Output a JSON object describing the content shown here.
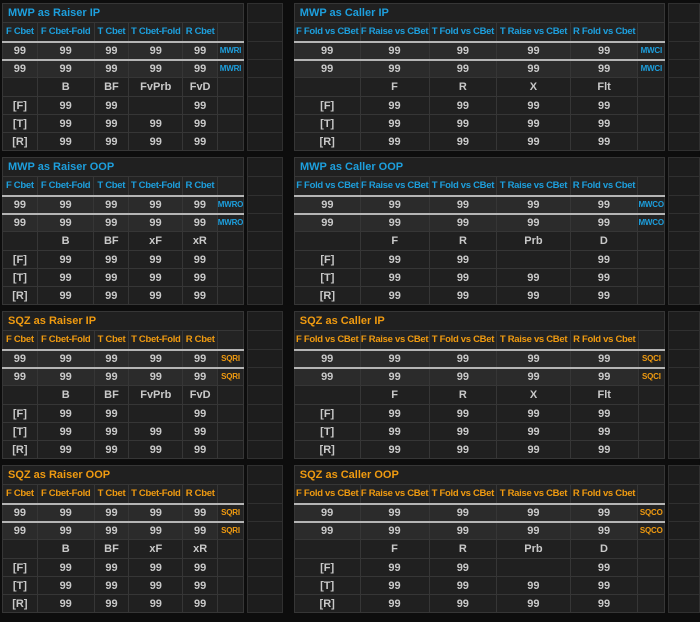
{
  "colors": {
    "mwp_accent": "#1d9fdd",
    "sqz_accent": "#ef9a10",
    "value_text": "#c9c9c9",
    "row_highlight_border": "#b5b5b5"
  },
  "panels": [
    {
      "id": "mwp-raiser-ip",
      "accent": "mwp",
      "title": "MWP as Raiser IP",
      "tag": "MWRI",
      "headers": [
        "F Cbet",
        "F Cbet-Fold",
        "T Cbet",
        "T Cbet-Fold",
        "R Cbet"
      ],
      "stat_rows": [
        [
          "99",
          "99",
          "99",
          "99",
          "99"
        ],
        [
          "99",
          "99",
          "99",
          "99",
          "99"
        ]
      ],
      "action_labels": [
        "B",
        "BF",
        "FvPrb",
        "FvD"
      ],
      "streets": [
        {
          "label": "[F]",
          "values": [
            "99",
            "99",
            "",
            "99"
          ]
        },
        {
          "label": "[T]",
          "values": [
            "99",
            "99",
            "99",
            "99"
          ]
        },
        {
          "label": "[R]",
          "values": [
            "99",
            "99",
            "99",
            "99"
          ]
        }
      ]
    },
    {
      "id": "mwp-caller-ip",
      "accent": "mwp",
      "title": "MWP as Caller IP",
      "tag": "MWCI",
      "headers": [
        "F Fold vs CBet",
        "F Raise vs CBet",
        "T Fold vs CBet",
        "T Raise vs CBet",
        "R Fold vs Cbet"
      ],
      "stat_rows": [
        [
          "99",
          "99",
          "99",
          "99",
          "99"
        ],
        [
          "99",
          "99",
          "99",
          "99",
          "99"
        ]
      ],
      "action_labels": [
        "F",
        "R",
        "X",
        "Flt"
      ],
      "streets": [
        {
          "label": "[F]",
          "values": [
            "99",
            "99",
            "99",
            "99"
          ]
        },
        {
          "label": "[T]",
          "values": [
            "99",
            "99",
            "99",
            "99"
          ]
        },
        {
          "label": "[R]",
          "values": [
            "99",
            "99",
            "99",
            "99"
          ]
        }
      ]
    },
    {
      "id": "mwp-raiser-oop",
      "accent": "mwp",
      "title": "MWP as Raiser OOP",
      "tag": "MWRO",
      "headers": [
        "F Cbet",
        "F Cbet-Fold",
        "T Cbet",
        "T Cbet-Fold",
        "R Cbet"
      ],
      "stat_rows": [
        [
          "99",
          "99",
          "99",
          "99",
          "99"
        ],
        [
          "99",
          "99",
          "99",
          "99",
          "99"
        ]
      ],
      "action_labels": [
        "B",
        "BF",
        "xF",
        "xR"
      ],
      "streets": [
        {
          "label": "[F]",
          "values": [
            "99",
            "99",
            "99",
            "99"
          ]
        },
        {
          "label": "[T]",
          "values": [
            "99",
            "99",
            "99",
            "99"
          ]
        },
        {
          "label": "[R]",
          "values": [
            "99",
            "99",
            "99",
            "99"
          ]
        }
      ]
    },
    {
      "id": "mwp-caller-oop",
      "accent": "mwp",
      "title": "MWP as Caller OOP",
      "tag": "MWCO",
      "headers": [
        "F Fold vs CBet",
        "F Raise vs CBet",
        "T Fold vs CBet",
        "T Raise vs CBet",
        "R Fold vs Cbet"
      ],
      "stat_rows": [
        [
          "99",
          "99",
          "99",
          "99",
          "99"
        ],
        [
          "99",
          "99",
          "99",
          "99",
          "99"
        ]
      ],
      "action_labels": [
        "F",
        "R",
        "Prb",
        "D"
      ],
      "streets": [
        {
          "label": "[F]",
          "values": [
            "99",
            "99",
            "",
            "99"
          ]
        },
        {
          "label": "[T]",
          "values": [
            "99",
            "99",
            "99",
            "99"
          ]
        },
        {
          "label": "[R]",
          "values": [
            "99",
            "99",
            "99",
            "99"
          ]
        }
      ]
    },
    {
      "id": "sqz-raiser-ip",
      "accent": "sqz",
      "title": "SQZ as Raiser IP",
      "tag": "SQRI",
      "headers": [
        "F Cbet",
        "F Cbet-Fold",
        "T Cbet",
        "T Cbet-Fold",
        "R Cbet"
      ],
      "stat_rows": [
        [
          "99",
          "99",
          "99",
          "99",
          "99"
        ],
        [
          "99",
          "99",
          "99",
          "99",
          "99"
        ]
      ],
      "action_labels": [
        "B",
        "BF",
        "FvPrb",
        "FvD"
      ],
      "streets": [
        {
          "label": "[F]",
          "values": [
            "99",
            "99",
            "",
            "99"
          ]
        },
        {
          "label": "[T]",
          "values": [
            "99",
            "99",
            "99",
            "99"
          ]
        },
        {
          "label": "[R]",
          "values": [
            "99",
            "99",
            "99",
            "99"
          ]
        }
      ]
    },
    {
      "id": "sqz-caller-ip",
      "accent": "sqz",
      "title": "SQZ as Caller IP",
      "tag": "SQCI",
      "headers": [
        "F Fold vs CBet",
        "F Raise vs CBet",
        "T Fold vs CBet",
        "T Raise vs CBet",
        "R Fold vs Cbet"
      ],
      "stat_rows": [
        [
          "99",
          "99",
          "99",
          "99",
          "99"
        ],
        [
          "99",
          "99",
          "99",
          "99",
          "99"
        ]
      ],
      "action_labels": [
        "F",
        "R",
        "X",
        "Flt"
      ],
      "streets": [
        {
          "label": "[F]",
          "values": [
            "99",
            "99",
            "99",
            "99"
          ]
        },
        {
          "label": "[T]",
          "values": [
            "99",
            "99",
            "99",
            "99"
          ]
        },
        {
          "label": "[R]",
          "values": [
            "99",
            "99",
            "99",
            "99"
          ]
        }
      ]
    },
    {
      "id": "sqz-raiser-oop",
      "accent": "sqz",
      "title": "SQZ as Raiser OOP",
      "tag": "SQRI",
      "headers": [
        "F Cbet",
        "F Cbet-Fold",
        "T Cbet",
        "T Cbet-Fold",
        "R Cbet"
      ],
      "stat_rows": [
        [
          "99",
          "99",
          "99",
          "99",
          "99"
        ],
        [
          "99",
          "99",
          "99",
          "99",
          "99"
        ]
      ],
      "action_labels": [
        "B",
        "BF",
        "xF",
        "xR"
      ],
      "streets": [
        {
          "label": "[F]",
          "values": [
            "99",
            "99",
            "99",
            "99"
          ]
        },
        {
          "label": "[T]",
          "values": [
            "99",
            "99",
            "99",
            "99"
          ]
        },
        {
          "label": "[R]",
          "values": [
            "99",
            "99",
            "99",
            "99"
          ]
        }
      ]
    },
    {
      "id": "sqz-caller-oop",
      "accent": "sqz",
      "title": "SQZ as Caller OOP",
      "tag": "SQCO",
      "headers": [
        "F Fold vs CBet",
        "F Raise vs CBet",
        "T Fold vs CBet",
        "T Raise vs CBet",
        "R Fold vs Cbet"
      ],
      "stat_rows": [
        [
          "99",
          "99",
          "99",
          "99",
          "99"
        ],
        [
          "99",
          "99",
          "99",
          "99",
          "99"
        ]
      ],
      "action_labels": [
        "F",
        "R",
        "Prb",
        "D"
      ],
      "streets": [
        {
          "label": "[F]",
          "values": [
            "99",
            "99",
            "",
            "99"
          ]
        },
        {
          "label": "[T]",
          "values": [
            "99",
            "99",
            "99",
            "99"
          ]
        },
        {
          "label": "[R]",
          "values": [
            "99",
            "99",
            "99",
            "99"
          ]
        }
      ]
    }
  ]
}
